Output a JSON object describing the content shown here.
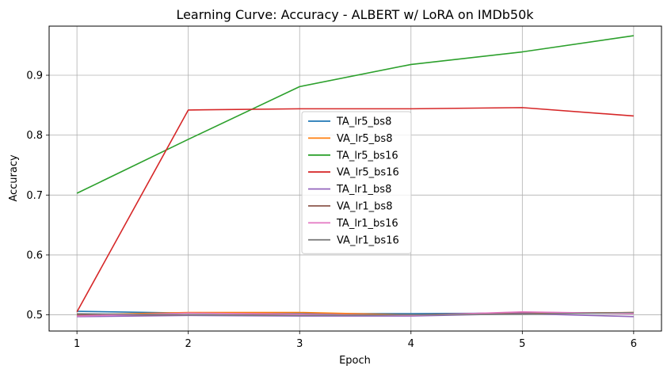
{
  "chart_data": {
    "type": "line",
    "title": "Learning Curve: Accuracy - ALBERT w/ LoRA on IMDb50k",
    "xlabel": "Epoch",
    "ylabel": "Accuracy",
    "x": [
      1,
      2,
      3,
      4,
      5,
      6
    ],
    "xlim": [
      0.75,
      6.25
    ],
    "ylim": [
      0.473,
      0.982
    ],
    "xticks": [
      1,
      2,
      3,
      4,
      5,
      6
    ],
    "yticks": [
      0.5,
      0.6,
      0.7,
      0.8,
      0.9
    ],
    "grid": true,
    "legend_position": "center",
    "series": [
      {
        "name": "TA_lr5_bs8",
        "color": "#1f77b4",
        "values": [
          0.506,
          0.503,
          0.502,
          0.502,
          0.503,
          0.503
        ]
      },
      {
        "name": "VA_lr5_bs8",
        "color": "#ff7f0e",
        "values": [
          0.5,
          0.504,
          0.504,
          0.5,
          0.502,
          0.504
        ]
      },
      {
        "name": "TA_lr5_bs16",
        "color": "#2ca02c",
        "values": [
          0.703,
          0.793,
          0.881,
          0.918,
          0.939,
          0.966
        ]
      },
      {
        "name": "VA_lr5_bs16",
        "color": "#d62728",
        "values": [
          0.505,
          0.842,
          0.844,
          0.844,
          0.846,
          0.832
        ]
      },
      {
        "name": "TA_lr1_bs8",
        "color": "#9467bd",
        "values": [
          0.497,
          0.499,
          0.498,
          0.498,
          0.502,
          0.497
        ]
      },
      {
        "name": "VA_lr1_bs8",
        "color": "#8c564b",
        "values": [
          0.5,
          0.5,
          0.5,
          0.5,
          0.504,
          0.503
        ]
      },
      {
        "name": "TA_lr1_bs16",
        "color": "#e377c2",
        "values": [
          0.498,
          0.503,
          0.501,
          0.499,
          0.505,
          0.502
        ]
      },
      {
        "name": "VA_lr1_bs16",
        "color": "#7f7f7f",
        "values": [
          0.502,
          0.5,
          0.499,
          0.5,
          0.501,
          0.504
        ]
      }
    ]
  }
}
